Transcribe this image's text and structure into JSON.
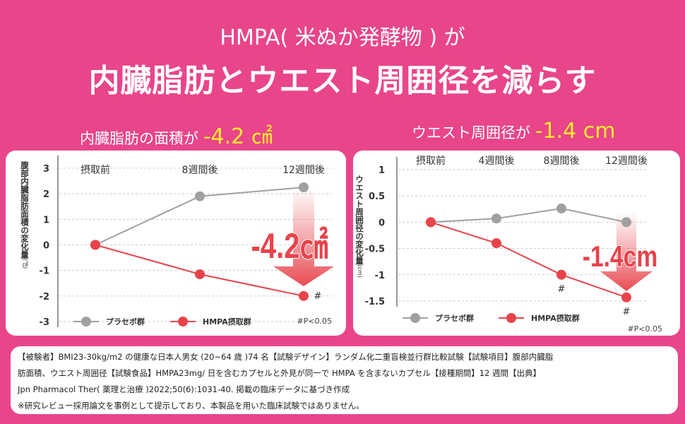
{
  "header": {
    "title_line1": "HMPA( 米ぬか発酵物 ) が",
    "title_line2": "内臓脂肪とウエスト周囲径を減らす"
  },
  "colors": {
    "background": "#e9458a",
    "highlight": "#ffec2b",
    "placebo": "#a0a0a0",
    "hmpa": "#e8434b"
  },
  "left": {
    "subtitle_prefix": "内臓脂肪の面積が",
    "subtitle_value": "-4.2 ㎠"
  },
  "right": {
    "subtitle_prefix": "ウエスト周囲径が",
    "subtitle_value": "-1.4 cm"
  },
  "chart_data": [
    {
      "type": "line",
      "ylabel": "腹部内臓脂肪面積の変化量",
      "yunit": "(㎠)",
      "categories": [
        "摂取前",
        "8週間後",
        "12週間後"
      ],
      "ylim": [
        -3,
        3
      ],
      "yticks": [
        "3",
        "2",
        "1",
        "0",
        "-1",
        "-2",
        "-3"
      ],
      "ytick_values": [
        3,
        2,
        1,
        0,
        -1,
        -2,
        -3
      ],
      "grid": true,
      "series": [
        {
          "name": "プラセボ群",
          "values": [
            0,
            1.9,
            2.25
          ]
        },
        {
          "name": "HMPA摂取群",
          "values": [
            0,
            -1.15,
            -2.0
          ],
          "significance": [
            "",
            "",
            "#"
          ]
        }
      ],
      "annotation": "-4.2㎠",
      "footnote": "#P<0.05",
      "legend": "bottom"
    },
    {
      "type": "line",
      "ylabel": "ウエスト周囲径の変化量",
      "yunit": "(cm)",
      "categories": [
        "摂取前",
        "4週間後",
        "8週間後",
        "12週間後"
      ],
      "ylim": [
        -1.5,
        1
      ],
      "yticks": [
        "1",
        "0.5",
        "0",
        "-0.5",
        "-1",
        "-1.5"
      ],
      "ytick_values": [
        1,
        0.5,
        0,
        -0.5,
        -1,
        -1.5
      ],
      "grid": true,
      "series": [
        {
          "name": "プラセボ群",
          "values": [
            0,
            0.07,
            0.26,
            0
          ]
        },
        {
          "name": "HMPA摂取群",
          "values": [
            0,
            -0.4,
            -1.0,
            -1.43
          ],
          "significance": [
            "",
            "",
            "#",
            "#"
          ]
        }
      ],
      "annotation": "-1.4cm",
      "footnote": "#P<0.05",
      "legend": "bottom"
    }
  ],
  "notes": {
    "line1": "【被験者】BMI23-30kg/m2 の健康な日本人男女 (20~64 歳 )74 名【試験デザイン】ランダム化二重盲検並行群比較試験【試験項目】腹部内臓脂",
    "line2": "肪面積、ウエスト周囲径【試験食品】HMPA23mg/ 日を含むカプセルと外見が同一で HMPA を含まないカプセル【接種期間】12 週間【出典】",
    "line3": "Jpn Pharmacol Ther( 薬理と治療 )2022;50(6):1031-40. 掲載の臨床データに基づき作成",
    "line4": "※研究レビュー採用論文を事例として提示しており、本製品を用いた臨床試験ではありません。"
  }
}
